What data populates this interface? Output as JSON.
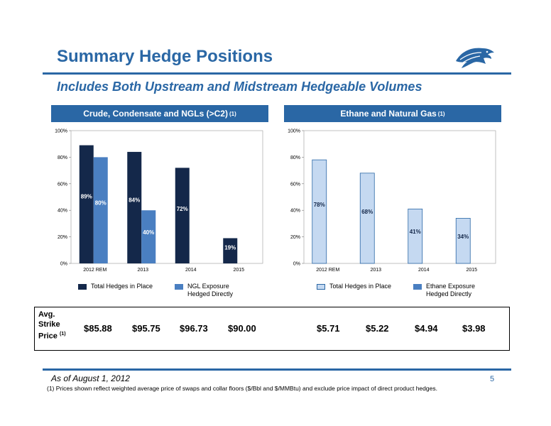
{
  "header": {
    "title": "Summary Hedge Positions",
    "subtitle": "Includes Both Upstream and Midstream Hedgeable Volumes"
  },
  "colors": {
    "brand_blue": "#2a67a5",
    "dark_navy": "#14284a",
    "medium_blue": "#4a7fc1",
    "light_blue": "#c5d9f1"
  },
  "icons": {
    "logo": "eagle-logo-icon"
  },
  "panels": {
    "left": {
      "title": "Crude, Condensate and NGLs (>C2)",
      "footnote_ref": "(1)"
    },
    "right": {
      "title": "Ethane and Natural Gas",
      "footnote_ref": "(1)"
    }
  },
  "legends": {
    "left": {
      "series1": "Total Hedges in Place",
      "series2": "NGL Exposure Hedged Directly"
    },
    "right": {
      "series1": "Total Hedges in Place",
      "series2": "Ethane Exposure Hedged Directly"
    }
  },
  "chart_data": [
    {
      "type": "bar",
      "categories": [
        "2012 REM",
        "2013",
        "2014",
        "2015"
      ],
      "series": [
        {
          "name": "Total Hedges in Place",
          "values": [
            89,
            84,
            72,
            19
          ],
          "labels": [
            "89%",
            "84%",
            "72%",
            "19%"
          ]
        },
        {
          "name": "NGL Exposure Hedged Directly",
          "values": [
            80,
            40,
            null,
            null
          ],
          "labels": [
            "80%",
            "40%",
            "",
            ""
          ]
        }
      ],
      "yticks": [
        "0%",
        "20%",
        "40%",
        "60%",
        "80%",
        "100%"
      ],
      "ylim": [
        0,
        100
      ]
    },
    {
      "type": "bar",
      "categories": [
        "2012 REM",
        "2013",
        "2014",
        "2015"
      ],
      "series": [
        {
          "name": "Total Hedges in Place",
          "values": [
            78,
            68,
            41,
            34
          ],
          "labels": [
            "78%",
            "68%",
            "41%",
            "34%"
          ]
        },
        {
          "name": "Ethane Exposure Hedged Directly",
          "values": [
            null,
            null,
            null,
            null
          ],
          "labels": [
            "",
            "",
            "",
            ""
          ]
        }
      ],
      "yticks": [
        "0%",
        "20%",
        "40%",
        "60%",
        "80%",
        "100%"
      ],
      "ylim": [
        0,
        100
      ]
    }
  ],
  "prices": {
    "label_line1": "Avg.",
    "label_line2": "Strike",
    "label_line3": "Price",
    "label_ref": "(1)",
    "left": [
      "$85.88",
      "$95.75",
      "$96.73",
      "$90.00"
    ],
    "right": [
      "$5.71",
      "$5.22",
      "$4.94",
      "$3.98"
    ]
  },
  "footer": {
    "as_of": "As of August 1, 2012",
    "page": "5",
    "footnote": "(1)   Prices shown reflect weighted average price of swaps and collar floors ($/Bbl and $/MMBtu) and exclude price impact of direct product hedges."
  }
}
